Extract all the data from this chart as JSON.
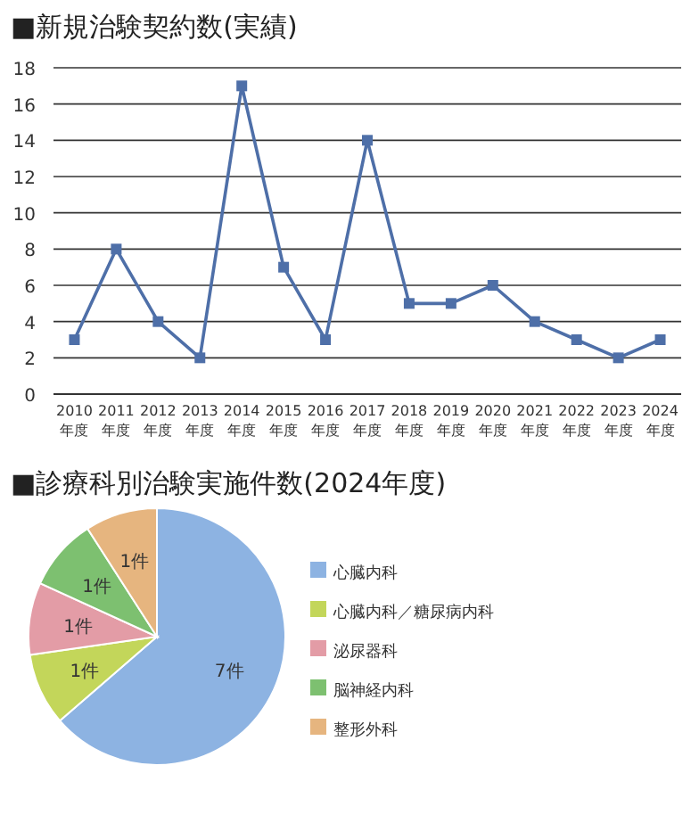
{
  "chart_data": [
    {
      "type": "line",
      "title": "■新規治験契約数(実績)",
      "categories": [
        "2010\n年度",
        "2011\n年度",
        "2012\n年度",
        "2013\n年度",
        "2014\n年度",
        "2015\n年度",
        "2016\n年度",
        "2017\n年度",
        "2018\n年度",
        "2019\n年度",
        "2020\n年度",
        "2021\n年度",
        "2022\n年度",
        "2023\n年度",
        "2024\n年度"
      ],
      "series": [
        {
          "color": "#4e6fa8",
          "values": [
            3,
            8,
            4,
            2,
            17,
            7,
            3,
            14,
            5,
            5,
            6,
            4,
            3,
            2,
            3
          ]
        }
      ],
      "ylim": [
        0,
        18
      ],
      "yticks": [
        0,
        2,
        4,
        6,
        8,
        10,
        12,
        14,
        16,
        18
      ],
      "grid": "y",
      "marker": "square",
      "line_style": "solid"
    },
    {
      "type": "pie",
      "title": "■診療科別治験実施件数(2024年度)",
      "categories": [
        "心臓内科",
        "心臓内科／糖尿病内科",
        "泌尿器科",
        "脳神経内科",
        "整形外科"
      ],
      "values": [
        7,
        1,
        1,
        1,
        1
      ],
      "value_labels": [
        "7件",
        "1件",
        "1件",
        "1件",
        "1件"
      ],
      "colors": [
        "#8db3e2",
        "#c3d65a",
        "#e39ca6",
        "#7dc070",
        "#e6b57f"
      ],
      "legend": "right"
    }
  ]
}
